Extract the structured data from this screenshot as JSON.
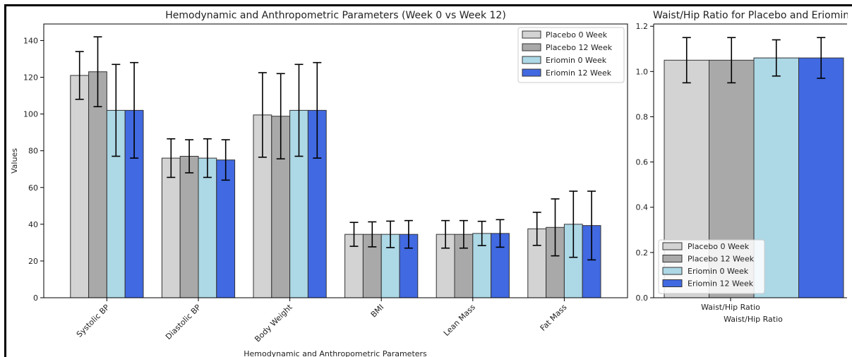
{
  "chart_data": [
    {
      "type": "bar",
      "title": "Hemodynamic and Anthropometric Parameters (Week 0 vs Week 12)",
      "xlabel": "Hemodynamic and Anthropometric Parameters",
      "ylabel": "Values",
      "ylim": [
        0,
        149
      ],
      "yticks": [
        "0",
        "20",
        "40",
        "60",
        "80",
        "100",
        "120",
        "140"
      ],
      "categories": [
        "Systolic BP",
        "Diastolic BP",
        "Body Weight",
        "BMI",
        "Lean Mass",
        "Fat Mass"
      ],
      "series": [
        {
          "name": "Placebo 0 Week",
          "color": "#d3d3d3",
          "values": [
            121,
            76,
            99.5,
            34.5,
            34.5,
            37.5
          ],
          "errors": [
            13,
            10.5,
            23,
            6.5,
            7.5,
            9
          ]
        },
        {
          "name": "Placebo 12 Week",
          "color": "#a9a9a9",
          "values": [
            123,
            77,
            98.8,
            34.5,
            34.5,
            38.3
          ],
          "errors": [
            19,
            9,
            23.2,
            6.8,
            7.5,
            15.5
          ]
        },
        {
          "name": "Eriomin 0 Week",
          "color": "#add8e6",
          "values": [
            102,
            76,
            102,
            34.5,
            35,
            40
          ],
          "errors": [
            25,
            10.5,
            25,
            7.2,
            6.6,
            18
          ]
        },
        {
          "name": "Eriomin 12 Week",
          "color": "#4169e1",
          "values": [
            102,
            75,
            102,
            34.5,
            35,
            39.3
          ],
          "errors": [
            26,
            11,
            26,
            7.5,
            7.5,
            18.7
          ]
        }
      ],
      "legend": "top-right",
      "grid": false
    },
    {
      "type": "bar",
      "title": "Waist/Hip Ratio for Placebo and Eriomin",
      "xlabel": "Waist/Hip Ratio",
      "ylabel": "",
      "ylim": [
        0,
        1.21
      ],
      "yticks": [
        "0.0",
        "0.2",
        "0.4",
        "0.6",
        "0.8",
        "1.0",
        "1.2"
      ],
      "categories": [
        "Waist/Hip Ratio"
      ],
      "series": [
        {
          "name": "Placebo 0 Week",
          "color": "#d3d3d3",
          "values": [
            1.05
          ],
          "errors": [
            0.1
          ]
        },
        {
          "name": "Placebo 12 Week",
          "color": "#a9a9a9",
          "values": [
            1.05
          ],
          "errors": [
            0.1
          ]
        },
        {
          "name": "Eriomin 0 Week",
          "color": "#add8e6",
          "values": [
            1.06
          ],
          "errors": [
            0.08
          ]
        },
        {
          "name": "Eriomin 12 Week",
          "color": "#4169e1",
          "values": [
            1.06
          ],
          "errors": [
            0.09
          ]
        }
      ],
      "legend": "bottom-left",
      "grid": false
    }
  ]
}
